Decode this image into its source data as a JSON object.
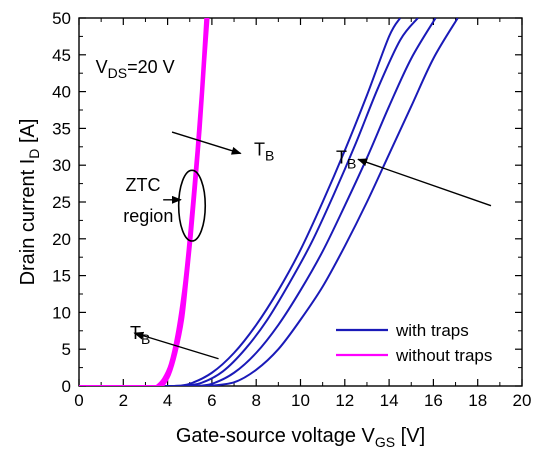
{
  "chart_data": {
    "type": "line",
    "xlabel": {
      "main": "Gate-source voltage V",
      "sub": "GS",
      "unit": " [V]"
    },
    "ylabel": {
      "main": "Drain current I",
      "sub": "D",
      "unit": " [A]"
    },
    "xlim": [
      0,
      20
    ],
    "ylim": [
      0,
      50
    ],
    "xticks": [
      0,
      2,
      4,
      6,
      8,
      10,
      12,
      14,
      16,
      18,
      20
    ],
    "yticks": [
      0,
      5,
      10,
      15,
      20,
      25,
      30,
      35,
      40,
      45,
      50
    ],
    "grid": false,
    "legend_position": "bottom-right",
    "series": [
      {
        "name": "with traps",
        "color": "#1a1ab8",
        "curves": [
          {
            "x": [
              4.3,
              5,
              6,
              7,
              8,
              9,
              10,
              11,
              12,
              13,
              14,
              14.5
            ],
            "y": [
              0,
              0.3,
              1.8,
              4.5,
              8.3,
              13,
              18.5,
              25,
              32,
              39.5,
              47.5,
              50
            ]
          },
          {
            "x": [
              4.6,
              5.5,
              6.5,
              7.5,
              8.5,
              9.5,
              10.5,
              11.5,
              12.5,
              13.5,
              14.5,
              15.3
            ],
            "y": [
              0,
              0.4,
              2,
              5,
              9,
              14,
              19.5,
              26,
              33,
              40.5,
              47,
              50
            ]
          },
          {
            "x": [
              5.2,
              6,
              7,
              8,
              9,
              10,
              11,
              12,
              13,
              14,
              15,
              16.1
            ],
            "y": [
              0,
              0.3,
              1.8,
              4.5,
              8.3,
              13,
              18.3,
              24.5,
              31,
              38,
              44.5,
              50
            ]
          },
          {
            "x": [
              5.8,
              7,
              8,
              9,
              10,
              11,
              12,
              13,
              14,
              15,
              16,
              17.1
            ],
            "y": [
              0,
              0.5,
              2.2,
              5,
              9,
              13.5,
              19,
              25,
              31.5,
              38,
              44.5,
              50
            ]
          }
        ]
      },
      {
        "name": "without traps",
        "color": "#ff00ff",
        "curves": [
          {
            "x": [
              3.5,
              3.8,
              4.1,
              4.4,
              4.7,
              4.9,
              5.1,
              5.3,
              5.5,
              5.7
            ],
            "y": [
              0,
              1,
              3,
              7,
              13,
              18.5,
              25,
              32,
              40,
              50
            ]
          },
          {
            "x": [
              3.6,
              3.9,
              4.2,
              4.5,
              4.8,
              5.0,
              5.2,
              5.4,
              5.6,
              5.75
            ],
            "y": [
              0,
              1,
              3.2,
              7.5,
              13.5,
              19.5,
              26,
              33.5,
              42,
              50
            ]
          },
          {
            "x": [
              3.7,
              4.0,
              4.3,
              4.6,
              4.85,
              5.05,
              5.25,
              5.45,
              5.65,
              5.8
            ],
            "y": [
              0,
              1.2,
              3.8,
              8,
              14,
              20,
              27,
              34,
              43,
              50
            ]
          },
          {
            "x": [
              3.8,
              4.1,
              4.4,
              4.7,
              4.9,
              5.1,
              5.3,
              5.5,
              5.7,
              5.85
            ],
            "y": [
              0,
              1.5,
              4.5,
              9,
              14.5,
              20.5,
              27.5,
              35,
              44,
              50
            ]
          }
        ]
      }
    ],
    "annotations": {
      "vds": {
        "main": "V",
        "sub": "DS",
        "rest": "=20 V"
      },
      "tb": {
        "main": "T",
        "sub": "B"
      },
      "ztc": {
        "line1": "ZTC",
        "line2": "region"
      },
      "arrows": [
        {
          "from": [
            4.2,
            34.5
          ],
          "to": [
            7.3,
            31.6
          ]
        },
        {
          "from": [
            18.6,
            24.5
          ],
          "to": [
            12.6,
            30.8
          ]
        },
        {
          "from": [
            6.3,
            3.7
          ],
          "to": [
            2.5,
            7.2
          ]
        }
      ],
      "ellipse": {
        "cx": 5.1,
        "cy": 24.5,
        "rx": 0.6,
        "ry": 4.8
      },
      "ztc_pointer": {
        "from": [
          3.8,
          25.3
        ],
        "to": [
          4.6,
          25.3
        ]
      }
    }
  }
}
